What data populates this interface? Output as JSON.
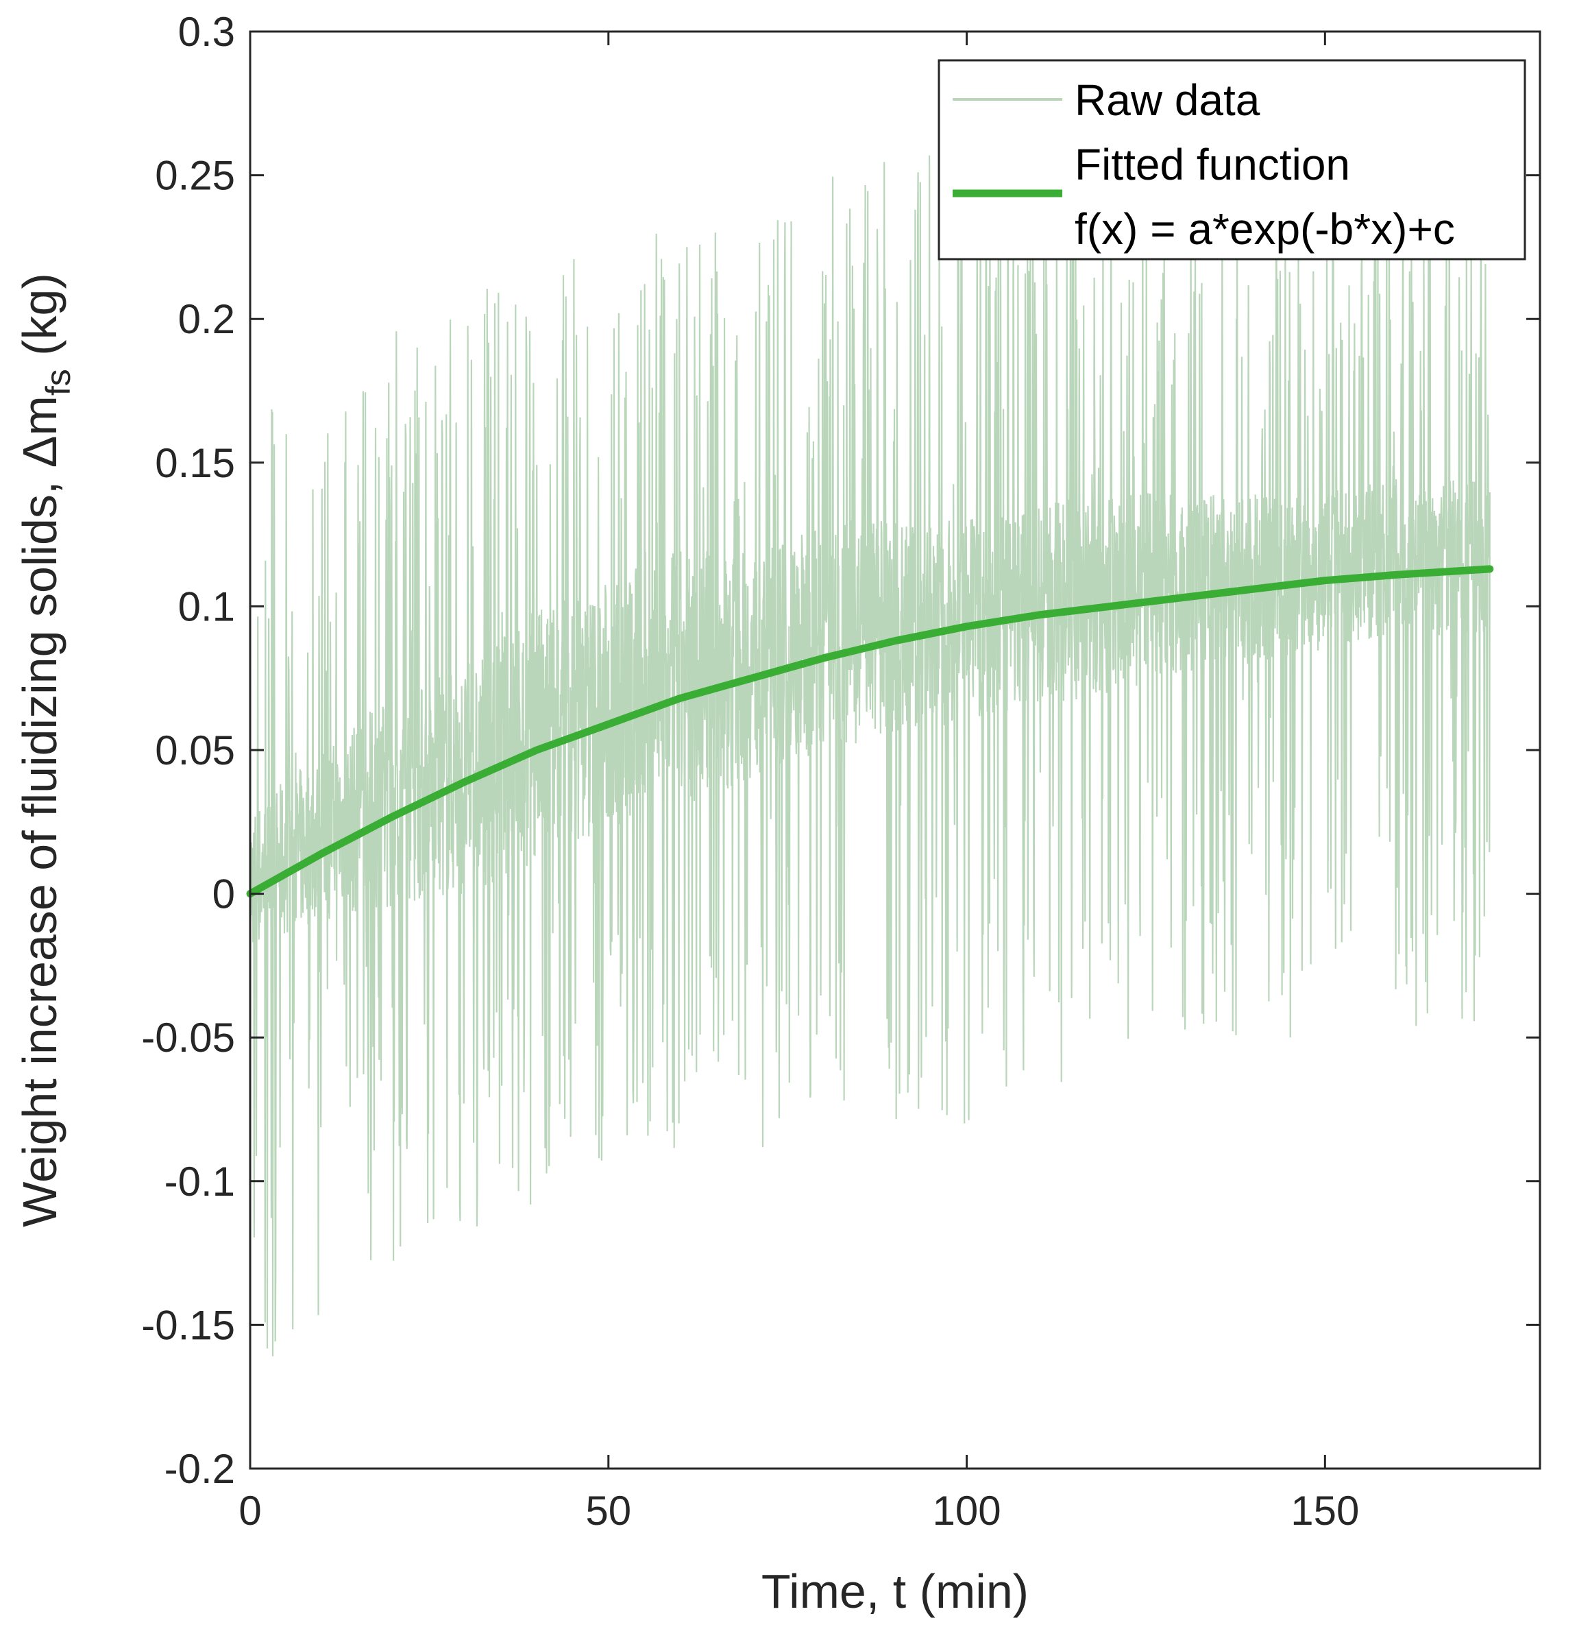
{
  "chart_data": {
    "type": "line",
    "title": "",
    "xlabel": "Time, t (min)",
    "ylabel_main": "Weight increase of fluidizing solids, ",
    "ylabel_symbol": "Δm",
    "ylabel_subscript": "fs",
    "ylabel_unit": " (kg)",
    "xlim": [
      0,
      180
    ],
    "ylim": [
      -0.2,
      0.3
    ],
    "x_ticks": [
      0,
      50,
      100,
      150
    ],
    "x_tick_labels": [
      "0",
      "50",
      "100",
      "150"
    ],
    "y_ticks": [
      -0.2,
      -0.15,
      -0.1,
      -0.05,
      0,
      0.05,
      0.1,
      0.15,
      0.2,
      0.25,
      0.3
    ],
    "y_tick_labels": [
      "-0.2",
      "-0.15",
      "-0.1",
      "-0.05",
      "0",
      "0.05",
      "0.1",
      "0.15",
      "0.2",
      "0.25",
      "0.3"
    ],
    "grid": false,
    "legend_position": "top-right",
    "legend": {
      "raw_label": "Raw data",
      "fit_label": "Fitted function",
      "fit_formula": "f(x) = a*exp(-b*x)+c"
    },
    "colors": {
      "raw": "#b9d6ba",
      "fit": "#3aae34",
      "axis": "#262626"
    },
    "series": [
      {
        "name": "Raw data",
        "x_range": [
          0,
          173
        ],
        "envelope_x": [
          0,
          5,
          10,
          20,
          30,
          40,
          50,
          60,
          70,
          80,
          90,
          100,
          110,
          120,
          130,
          140,
          150,
          160,
          170,
          173
        ],
        "envelope_upper": [
          0.17,
          0.18,
          0.17,
          0.2,
          0.21,
          0.22,
          0.23,
          0.23,
          0.24,
          0.25,
          0.26,
          0.26,
          0.24,
          0.25,
          0.24,
          0.23,
          0.23,
          0.25,
          0.29,
          0.22
        ],
        "envelope_lower": [
          -0.17,
          -0.16,
          -0.15,
          -0.13,
          -0.12,
          -0.11,
          -0.1,
          -0.09,
          -0.09,
          -0.08,
          -0.08,
          -0.08,
          -0.07,
          -0.06,
          -0.05,
          -0.05,
          -0.05,
          -0.05,
          -0.05,
          -0.03
        ],
        "band_upper": [
          0.03,
          0.04,
          0.05,
          0.07,
          0.08,
          0.1,
          0.11,
          0.12,
          0.12,
          0.13,
          0.13,
          0.13,
          0.135,
          0.14,
          0.14,
          0.14,
          0.14,
          0.145,
          0.145,
          0.14
        ],
        "band_lower": [
          -0.02,
          -0.015,
          -0.01,
          -0.005,
          0.0,
          0.01,
          0.02,
          0.03,
          0.04,
          0.05,
          0.055,
          0.06,
          0.065,
          0.07,
          0.075,
          0.08,
          0.085,
          0.09,
          0.09,
          0.09
        ]
      },
      {
        "name": "Fitted function",
        "x": [
          0,
          10,
          20,
          30,
          40,
          50,
          60,
          70,
          80,
          90,
          100,
          110,
          120,
          130,
          140,
          150,
          160,
          173
        ],
        "y": [
          0.0,
          0.014,
          0.027,
          0.039,
          0.05,
          0.059,
          0.068,
          0.075,
          0.082,
          0.088,
          0.093,
          0.097,
          0.1,
          0.103,
          0.106,
          0.109,
          0.111,
          0.113
        ]
      }
    ]
  }
}
